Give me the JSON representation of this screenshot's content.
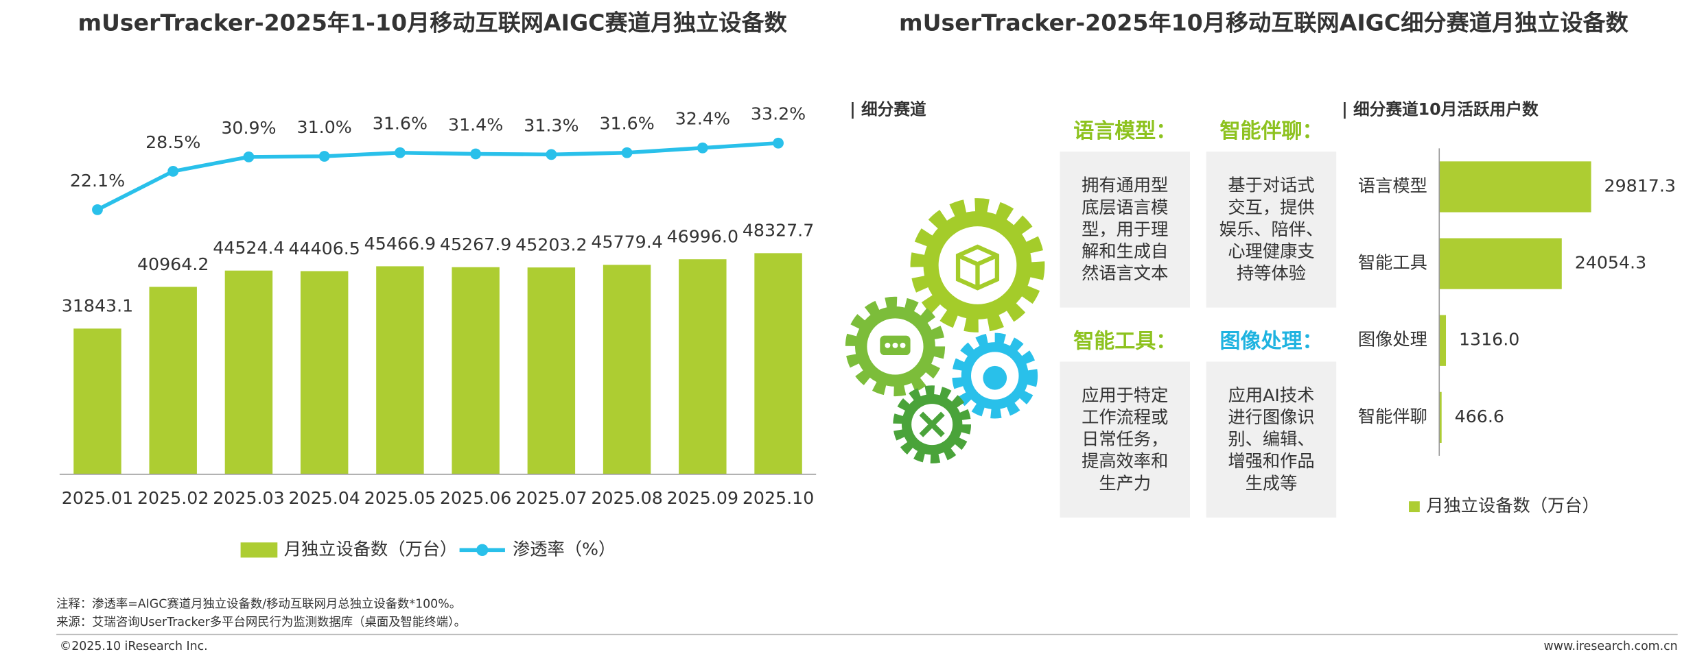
{
  "chart_data": [
    {
      "type": "bar",
      "title": "mUserTracker-2025年1-10月移动互联网AIGC赛道月独立设备数",
      "categories": [
        "2025.01",
        "2025.02",
        "2025.03",
        "2025.04",
        "2025.05",
        "2025.06",
        "2025.07",
        "2025.08",
        "2025.09",
        "2025.10"
      ],
      "series": [
        {
          "name": "月独立设备数（万台）",
          "color": "#adcd32",
          "values": [
            31843.1,
            40964.2,
            44524.4,
            44406.5,
            45466.9,
            45267.9,
            45203.2,
            45779.4,
            46996.0,
            48327.7
          ],
          "value_labels": [
            "31843.1",
            "40964.2",
            "44524.4",
            "44406.5",
            "45466.9",
            "45267.9",
            "45203.2",
            "45779.4",
            "46996.0",
            "48327.7"
          ]
        },
        {
          "name": "渗透率（%）",
          "type": "line",
          "axis": "y2",
          "color": "#29c0ea",
          "values": [
            22.1,
            28.5,
            30.9,
            31.0,
            31.6,
            31.4,
            31.3,
            31.6,
            32.4,
            33.2
          ],
          "value_labels": [
            "22.1%",
            "28.5%",
            "30.9%",
            "31.0%",
            "31.6%",
            "31.4%",
            "31.3%",
            "31.6%",
            "32.4%",
            "33.2%"
          ]
        }
      ],
      "ylim": [
        0,
        80000
      ],
      "y2lim": [
        -22,
        39
      ],
      "legend": "bottom"
    },
    {
      "type": "hbar",
      "title": "mUserTracker-2025年10月移动互联网AIGC细分赛道月独立设备数",
      "subtitle": "| 细分赛道10月活跃用户数",
      "categories": [
        "语言模型",
        "智能工具",
        "图像处理",
        "智能伴聊"
      ],
      "series": [
        {
          "name": "月独立设备数（万台）",
          "color": "#adcd32",
          "values": [
            29817.3,
            24054.3,
            1316.0,
            466.6
          ],
          "value_labels": [
            "29817.3",
            "24054.3",
            "1316.0",
            "466.6"
          ]
        }
      ],
      "xlim": [
        0,
        40000
      ],
      "legend": "bottom"
    }
  ],
  "diagram": {
    "label": "| 细分赛道",
    "cards": [
      {
        "title": "语言模型：",
        "color": "#8dc21f",
        "lines": [
          "拥有通用型",
          "底层语言模",
          "型，用于理",
          "解和生成自",
          "然语言文本"
        ]
      },
      {
        "title": "智能伴聊：",
        "color": "#8dc21f",
        "lines": [
          "基于对话式",
          "交互，提供",
          "娱乐、陪伴、",
          "心理健康支",
          "持等体验"
        ]
      },
      {
        "title": "智能工具：",
        "color": "#8dc21f",
        "lines": [
          "应用于特定",
          "工作流程或",
          "日常任务，",
          "提高效率和",
          "生产力"
        ]
      },
      {
        "title": "图像处理：",
        "color": "#1fb3e0",
        "lines": [
          "应用AI技术",
          "进行图像识",
          "别、编辑、",
          "增强和作品",
          "生成等"
        ]
      }
    ]
  },
  "notes": [
    "注释：渗透率=AIGC赛道月独立设备数/移动互联网月总独立设备数*100%。",
    "来源：艾瑞咨询UserTracker多平台网民行为监测数据库（桌面及智能终端）。"
  ],
  "footer": {
    "copyright": "©2025.10 iResearch Inc.",
    "website": "www.iresearch.com.cn"
  }
}
